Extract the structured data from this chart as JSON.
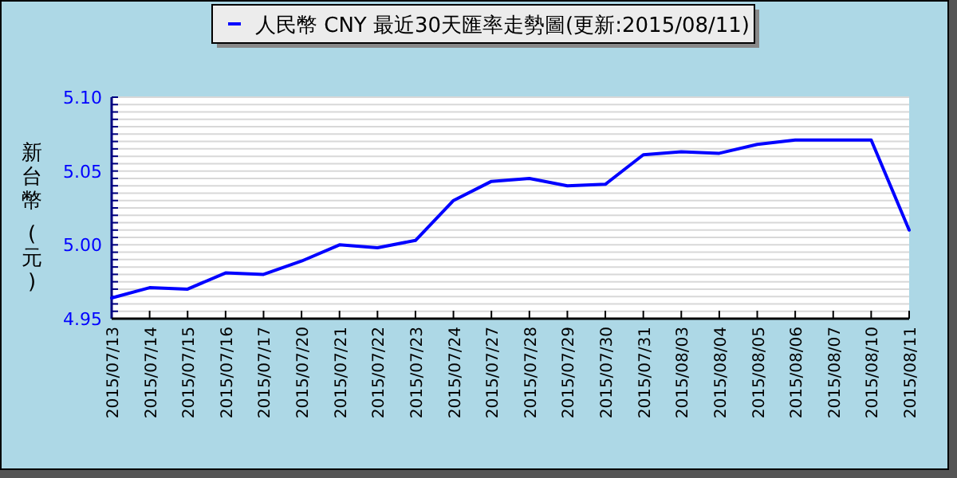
{
  "chart_data": {
    "type": "line",
    "ylabel": "新台幣 (元)",
    "categories": [
      "2015/07/13",
      "2015/07/14",
      "2015/07/15",
      "2015/07/16",
      "2015/07/17",
      "2015/07/20",
      "2015/07/21",
      "2015/07/22",
      "2015/07/23",
      "2015/07/24",
      "2015/07/27",
      "2015/07/28",
      "2015/07/29",
      "2015/07/30",
      "2015/07/31",
      "2015/08/03",
      "2015/08/04",
      "2015/08/05",
      "2015/08/06",
      "2015/08/07",
      "2015/08/10",
      "2015/08/11"
    ],
    "series": [
      {
        "name": "人民幣 CNY 最近30天匯率走勢圖(更新:2015/08/11)",
        "color": "#0000ff",
        "values": [
          4.964,
          4.971,
          4.97,
          4.981,
          4.98,
          4.989,
          5.0,
          4.998,
          5.003,
          5.03,
          5.043,
          5.045,
          5.04,
          5.041,
          5.061,
          5.063,
          5.062,
          5.068,
          5.071,
          5.071,
          5.071,
          5.01
        ]
      }
    ],
    "ylim": [
      4.95,
      5.1
    ],
    "yticks": [
      {
        "value": 4.95,
        "label": "4.95"
      },
      {
        "value": 4.955,
        "label": null
      },
      {
        "value": 4.96,
        "label": null
      },
      {
        "value": 4.965,
        "label": null
      },
      {
        "value": 4.97,
        "label": null
      },
      {
        "value": 4.975,
        "label": null
      },
      {
        "value": 4.98,
        "label": null
      },
      {
        "value": 4.985,
        "label": null
      },
      {
        "value": 4.99,
        "label": null
      },
      {
        "value": 4.995,
        "label": null
      },
      {
        "value": 5.0,
        "label": "5.00"
      },
      {
        "value": 5.005,
        "label": null
      },
      {
        "value": 5.01,
        "label": null
      },
      {
        "value": 5.015,
        "label": null
      },
      {
        "value": 5.02,
        "label": null
      },
      {
        "value": 5.025,
        "label": null
      },
      {
        "value": 5.03,
        "label": null
      },
      {
        "value": 5.035,
        "label": null
      },
      {
        "value": 5.04,
        "label": null
      },
      {
        "value": 5.045,
        "label": null
      },
      {
        "value": 5.05,
        "label": "5.05"
      },
      {
        "value": 5.055,
        "label": null
      },
      {
        "value": 5.06,
        "label": null
      },
      {
        "value": 5.065,
        "label": null
      },
      {
        "value": 5.07,
        "label": null
      },
      {
        "value": 5.075,
        "label": null
      },
      {
        "value": 5.08,
        "label": null
      },
      {
        "value": 5.085,
        "label": null
      },
      {
        "value": 5.09,
        "label": null
      },
      {
        "value": 5.095,
        "label": null
      },
      {
        "value": 5.1,
        "label": "5.10"
      }
    ],
    "grid": "y",
    "legend": "top",
    "marker": "none",
    "line_style": "solid"
  }
}
